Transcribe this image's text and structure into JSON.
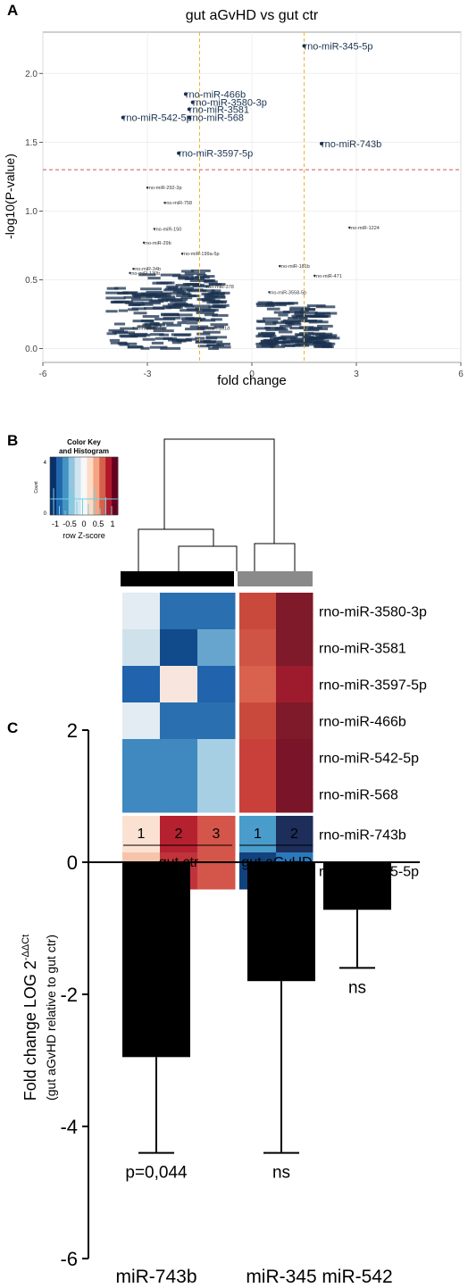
{
  "panel_letters": [
    "A",
    "B",
    "C"
  ],
  "chart_data": [
    {
      "type": "scatter",
      "title": "gut aGvHD vs gut ctr",
      "xlabel": "fold change",
      "ylabel": "-log10(P-value)",
      "xlim": [
        -6,
        6
      ],
      "ylim": [
        -0.1,
        2.3
      ],
      "xticks": [
        -6,
        -3,
        0,
        3,
        6
      ],
      "yticks": [
        0.0,
        0.5,
        1.0,
        1.5,
        2.0
      ],
      "xtick_labels": [
        "-6",
        "-3",
        "0",
        "3",
        "6"
      ],
      "ytick_labels": [
        "0.0",
        "0.5",
        "1.0",
        "1.5",
        "2.0"
      ],
      "thresholds": {
        "fold_change_lines": [
          -1.5,
          1.5
        ],
        "pvalue_line": 1.3
      },
      "colors": {
        "vline": "#f0b432",
        "hline": "#d9534f",
        "label": "#1b3350",
        "point": "#1b3350"
      },
      "highlighted_points": [
        {
          "label": "rno-miR-345-5p",
          "x": 1.5,
          "y": 2.2
        },
        {
          "label": "rno-miR-466b",
          "x": -1.9,
          "y": 1.85
        },
        {
          "label": "rno-miR-3580-3p",
          "x": -1.7,
          "y": 1.79
        },
        {
          "label": "rno-miR-3581",
          "x": -1.8,
          "y": 1.74
        },
        {
          "label": "rno-miR-542-5p",
          "x": -3.7,
          "y": 1.68
        },
        {
          "label": "rno-miR-568",
          "x": -1.8,
          "y": 1.68
        },
        {
          "label": "rno-miR-743b",
          "x": 2.0,
          "y": 1.49
        },
        {
          "label": "rno-miR-3597-5p",
          "x": -2.1,
          "y": 1.42
        }
      ],
      "minor_points": [
        {
          "label": "rno-miR-292-3p",
          "x": -3.0,
          "y": 1.17
        },
        {
          "label": "rno-miR-758",
          "x": -2.5,
          "y": 1.06
        },
        {
          "label": "rno-miR-1224",
          "x": 2.8,
          "y": 0.88
        },
        {
          "label": "rno-miR-150",
          "x": -2.8,
          "y": 0.87
        },
        {
          "label": "rno-miR-29b",
          "x": -3.1,
          "y": 0.77
        },
        {
          "label": "rno-miR-199a-5p",
          "x": -2.0,
          "y": 0.69
        },
        {
          "label": "rno-miR-34b",
          "x": -3.4,
          "y": 0.58
        },
        {
          "label": "rno-miR-130b",
          "x": -3.5,
          "y": 0.55
        },
        {
          "label": "rno-miR-181b",
          "x": 0.8,
          "y": 0.6
        },
        {
          "label": "rno-miR-471",
          "x": 1.8,
          "y": 0.53
        },
        {
          "label": "rno-miR-3558-5p",
          "x": 0.5,
          "y": 0.41
        },
        {
          "label": "rno-miR-17-5p",
          "x": -3.4,
          "y": 0.15
        },
        {
          "label": "rno-miR-181d",
          "x": -1.5,
          "y": 0.15
        },
        {
          "label": "rno-miR-378",
          "x": -1.3,
          "y": 0.45
        }
      ]
    },
    {
      "type": "heatmap",
      "color_key": {
        "title_line1": "Color Key",
        "title_line2": "and Histogram",
        "xlabel": "row Z-score",
        "ylabel": "Count",
        "tick_labels": [
          "-1",
          "-0.5",
          "0",
          "0.5",
          "1"
        ],
        "yticks": [
          "0",
          "4"
        ]
      },
      "rows": [
        "rno-miR-3580-3p",
        "rno-miR-3581",
        "rno-miR-3597-5p",
        "rno-miR-466b",
        "rno-miR-542-5p",
        "rno-miR-568",
        "rno-miR-743b",
        "rno-miR-345-5p"
      ],
      "columns": [
        "1",
        "2",
        "3",
        "1",
        "2"
      ],
      "groups": [
        {
          "name": "gut ctr",
          "columns": [
            "1",
            "2",
            "3"
          ],
          "color": "#000000"
        },
        {
          "name": "gut aGvHD",
          "columns": [
            "1",
            "2"
          ],
          "color": "#8a8a8a"
        }
      ],
      "values": [
        [
          "#e2ecf2",
          "#2a6faf",
          "#2a6faf",
          "#c94a3d",
          "#7e1a29"
        ],
        [
          "#cfe2ec",
          "#124b8b",
          "#67a5cf",
          "#cf5446",
          "#7e1a29"
        ],
        [
          "#2163ac",
          "#f8e6de",
          "#2163ac",
          "#d8624e",
          "#9e1b2d"
        ],
        [
          "#e2ecf2",
          "#2a6faf",
          "#2a6faf",
          "#c94a3d",
          "#7e1a29"
        ],
        [
          "#3f89c0",
          "#3f89c0",
          "#a7cfe4",
          "#c9403b",
          "#7a1428"
        ],
        [
          "#3f89c0",
          "#3f89c0",
          "#a7cfe4",
          "#c9403b",
          "#7a1428"
        ],
        [
          "#fbe1d2",
          "#b62130",
          "#d4554a",
          "#4a9ccb",
          "#1d2e5a"
        ],
        [
          "#f6c4aa",
          "#c1333a",
          "#d4554a",
          "#12427e",
          "#2b78bb"
        ]
      ]
    },
    {
      "type": "bar",
      "categories": [
        "miR-743b",
        "miR-345",
        "miR-542"
      ],
      "values": [
        -2.95,
        -1.8,
        -0.72
      ],
      "error_bars": [
        1.45,
        2.6,
        0.88
      ],
      "annotations": [
        "p=0,044",
        "ns",
        "ns"
      ],
      "ylabel_line1": "Fold change LOG 2",
      "ylabel_sup": "-ΔΔCt",
      "ylabel_line2": "(gut aGvHD relative to gut ctr)",
      "ylim": [
        -6,
        2
      ],
      "yticks": [
        2,
        0,
        -2,
        -4,
        -6
      ],
      "ytick_labels": [
        "2",
        "0",
        "-2",
        "-4",
        "-6"
      ],
      "colors": {
        "bar": "#000000"
      }
    }
  ]
}
